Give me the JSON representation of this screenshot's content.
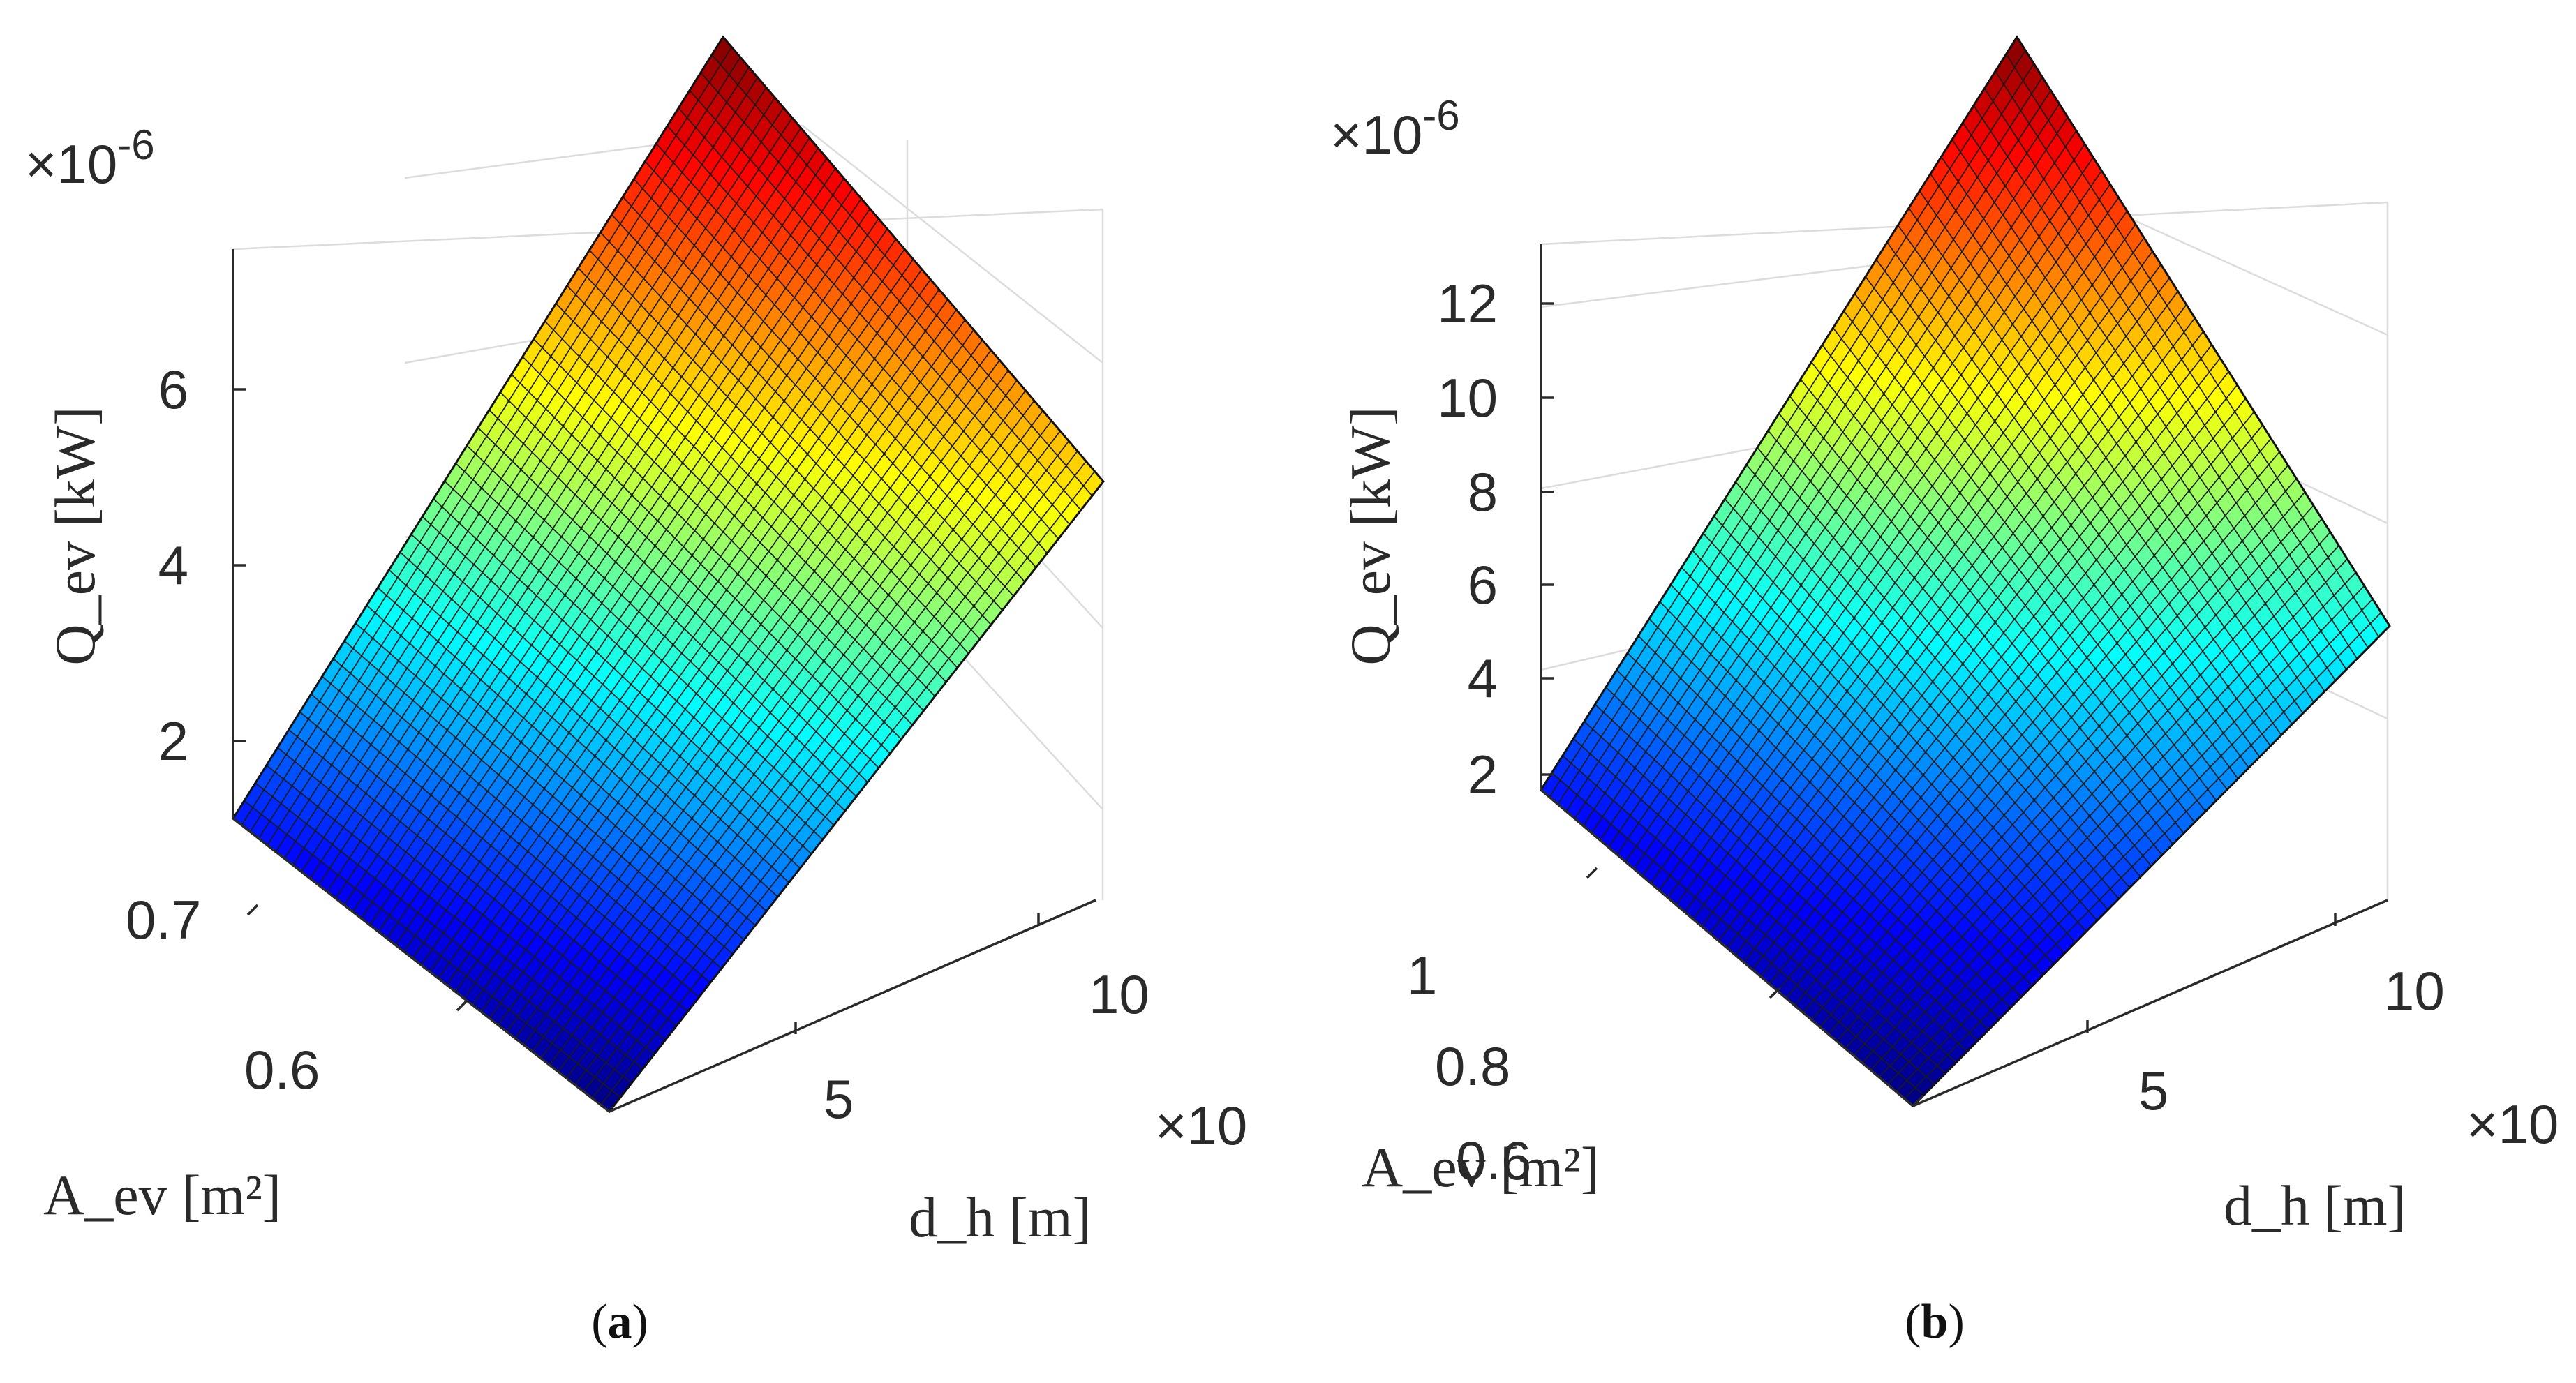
{
  "chart_data": [
    {
      "type": "surface",
      "panel": "a",
      "caption_letter": "a",
      "z_exponent_label": "×10",
      "z_exponent_power": "-6",
      "x_exponent_label": "×10",
      "zlabel": "Q_ev [kW]",
      "xlabel": "d_h [m]",
      "ylabel": "A_ev [m²]",
      "z_ticks": [
        "2",
        "4",
        "6"
      ],
      "y_ticks": [
        "0.7",
        "0.6"
      ],
      "x_ticks": [
        "5",
        "10"
      ],
      "colormap": "jet",
      "grid": true,
      "grid_lines": 44,
      "corners": {
        "left_z": 1.1,
        "bottom_z": 0.0,
        "top_z": 7.6,
        "right_z": 5.0
      }
    },
    {
      "type": "surface",
      "panel": "b",
      "caption_letter": "b",
      "z_exponent_label": "×10",
      "z_exponent_power": "-6",
      "x_exponent_label": "×10",
      "zlabel": "Q_ev [kW]",
      "xlabel": "d_h [m]",
      "ylabel": "A_ev [m²]",
      "z_ticks": [
        "2",
        "4",
        "6",
        "8",
        "10",
        "12"
      ],
      "y_ticks": [
        "1",
        "0.8",
        "0.6"
      ],
      "x_ticks": [
        "5",
        "10"
      ],
      "colormap": "jet",
      "grid": true,
      "grid_lines": 44,
      "corners": {
        "left_z": 1.8,
        "bottom_z": 0.0,
        "top_z": 13.0,
        "right_z": 5.0
      }
    }
  ]
}
